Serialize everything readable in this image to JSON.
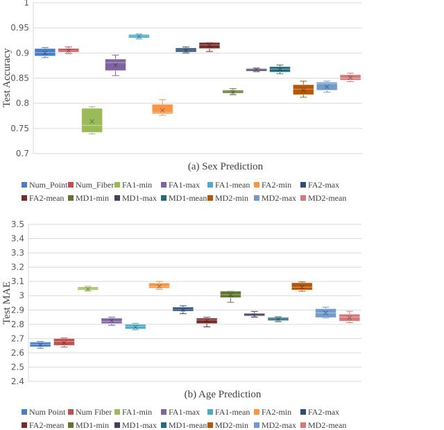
{
  "chart_data": [
    {
      "type": "box",
      "title": "(a) Sex Prediction",
      "xlabel": "",
      "ylabel": "Test Accuracy",
      "ylim": [
        0.7,
        1.0
      ],
      "yticks": [
        "0.7",
        "0.75",
        "0.8",
        "0.85",
        "0.9",
        "0.95",
        "1"
      ],
      "grid": true,
      "legend_placement": "bottom",
      "legend": [
        "Num_Point",
        "Num_Fiber",
        "FA1-min",
        "FA1-max",
        "FA1-mean",
        "FA2-min",
        "FA2-max",
        "FA2-mean",
        "MD1-min",
        "MD1-max",
        "MD1-mean",
        "MD2-min",
        "MD2-max",
        "MD2-mean"
      ],
      "series": [
        {
          "name": "Num_Point",
          "min": 0.891,
          "q1": 0.894,
          "median": 0.901,
          "q3": 0.909,
          "max": 0.911,
          "mean": 0.9
        },
        {
          "name": "Num_Fiber",
          "min": 0.899,
          "q1": 0.902,
          "median": 0.905,
          "q3": 0.909,
          "max": 0.912,
          "mean": 0.905
        },
        {
          "name": "FA1-min",
          "min": 0.739,
          "q1": 0.742,
          "median": 0.756,
          "q3": 0.79,
          "max": 0.793,
          "mean": 0.764
        },
        {
          "name": "FA1-max",
          "min": 0.855,
          "q1": 0.865,
          "median": 0.881,
          "q3": 0.888,
          "max": 0.896,
          "mean": 0.876
        },
        {
          "name": "FA1-mean",
          "min": 0.928,
          "q1": 0.93,
          "median": 0.934,
          "q3": 0.937,
          "max": 0.938,
          "mean": 0.933
        },
        {
          "name": "FA2-min",
          "min": 0.776,
          "q1": 0.779,
          "median": 0.782,
          "q3": 0.798,
          "max": 0.807,
          "mean": 0.786
        },
        {
          "name": "FA2-max",
          "min": 0.9,
          "q1": 0.902,
          "median": 0.906,
          "q3": 0.91,
          "max": 0.912,
          "mean": 0.905
        },
        {
          "name": "FA2-mean",
          "min": 0.903,
          "q1": 0.909,
          "median": 0.916,
          "q3": 0.921,
          "max": 0.921,
          "mean": 0.915
        },
        {
          "name": "MD1-min",
          "min": 0.817,
          "q1": 0.82,
          "median": 0.823,
          "q3": 0.826,
          "max": 0.829,
          "mean": 0.822
        },
        {
          "name": "MD1-max",
          "min": 0.863,
          "q1": 0.864,
          "median": 0.867,
          "q3": 0.869,
          "max": 0.87,
          "mean": 0.867
        },
        {
          "name": "MD1-mean",
          "min": 0.859,
          "q1": 0.862,
          "median": 0.868,
          "q3": 0.873,
          "max": 0.876,
          "mean": 0.868
        },
        {
          "name": "MD2-min",
          "min": 0.812,
          "q1": 0.817,
          "median": 0.828,
          "q3": 0.837,
          "max": 0.844,
          "mean": 0.826
        },
        {
          "name": "MD2-max",
          "min": 0.822,
          "q1": 0.826,
          "median": 0.839,
          "q3": 0.842,
          "max": 0.844,
          "mean": 0.833
        },
        {
          "name": "MD2-mean",
          "min": 0.843,
          "q1": 0.846,
          "median": 0.85,
          "q3": 0.857,
          "max": 0.86,
          "mean": 0.851
        }
      ]
    },
    {
      "type": "box",
      "title": "(b) Age Prediction",
      "xlabel": "",
      "ylabel": "Test MAE",
      "ylim": [
        2.4,
        3.5
      ],
      "yticks": [
        "2.4",
        "2.5",
        "2.6",
        "2.7",
        "2.8",
        "2.9",
        "3",
        "3.1",
        "3.2",
        "3.3",
        "3.4",
        "3.5"
      ],
      "grid": true,
      "legend_placement": "bottom",
      "legend": [
        "Num Point",
        "Num Fiber",
        "FA1-min",
        "FA1-max",
        "FA1-mean",
        "FA2-min",
        "FA2-max",
        "FA2-mean",
        "MD1-min",
        "MD1-max",
        "MD1-mean",
        "MD2-min",
        "MD2-max",
        "MD2-mean"
      ],
      "series": [
        {
          "name": "Num Point",
          "min": 2.632,
          "q1": 2.642,
          "median": 2.66,
          "q3": 2.675,
          "max": 2.68,
          "mean": 2.655
        },
        {
          "name": "Num Fiber",
          "min": 2.64,
          "q1": 2.652,
          "median": 2.68,
          "q3": 2.7,
          "max": 2.705,
          "mean": 2.67
        },
        {
          "name": "FA1-min",
          "min": 3.034,
          "q1": 3.04,
          "median": 3.05,
          "q3": 3.061,
          "max": 3.066,
          "mean": 3.045
        },
        {
          "name": "FA1-max",
          "min": 2.793,
          "q1": 2.805,
          "median": 2.82,
          "q3": 2.843,
          "max": 2.85,
          "mean": 2.825
        },
        {
          "name": "FA1-mean",
          "min": 2.761,
          "q1": 2.767,
          "median": 2.785,
          "q3": 2.8,
          "max": 2.806,
          "mean": 2.78
        },
        {
          "name": "FA2-min",
          "min": 3.045,
          "q1": 3.053,
          "median": 3.065,
          "q3": 3.089,
          "max": 3.1,
          "mean": 3.065
        },
        {
          "name": "FA2-max",
          "min": 2.874,
          "q1": 2.892,
          "median": 2.905,
          "q3": 2.92,
          "max": 2.93,
          "mean": 2.9
        },
        {
          "name": "FA2-mean",
          "min": 2.782,
          "q1": 2.805,
          "median": 2.83,
          "q3": 2.843,
          "max": 2.849,
          "mean": 2.825
        },
        {
          "name": "MD1-min",
          "min": 2.954,
          "q1": 2.987,
          "median": 3.008,
          "q3": 3.032,
          "max": 3.032,
          "mean": 3.005
        },
        {
          "name": "MD1-max",
          "min": 2.85,
          "q1": 2.857,
          "median": 2.862,
          "q3": 2.876,
          "max": 2.89,
          "mean": 2.862
        },
        {
          "name": "MD1-mean",
          "min": 2.818,
          "q1": 2.826,
          "median": 2.838,
          "q3": 2.848,
          "max": 2.853,
          "mean": 2.835
        },
        {
          "name": "MD2-min",
          "min": 3.032,
          "q1": 3.04,
          "median": 3.06,
          "q3": 3.091,
          "max": 3.097,
          "mean": 3.06
        },
        {
          "name": "MD2-max",
          "min": 2.844,
          "q1": 2.847,
          "median": 2.88,
          "q3": 2.909,
          "max": 2.92,
          "mean": 2.88
        },
        {
          "name": "MD2-mean",
          "min": 2.811,
          "q1": 2.822,
          "median": 2.85,
          "q3": 2.871,
          "max": 2.891,
          "mean": 2.845
        }
      ]
    }
  ],
  "colors": [
    "#4A7EC4",
    "#C0504D",
    "#9BBB59",
    "#8064A2",
    "#4BACC6",
    "#F79646",
    "#2C4D75",
    "#772C2A",
    "#5F7530",
    "#4D3B62",
    "#276A7C",
    "#B65708",
    "#729ACA",
    "#D47B7A"
  ]
}
